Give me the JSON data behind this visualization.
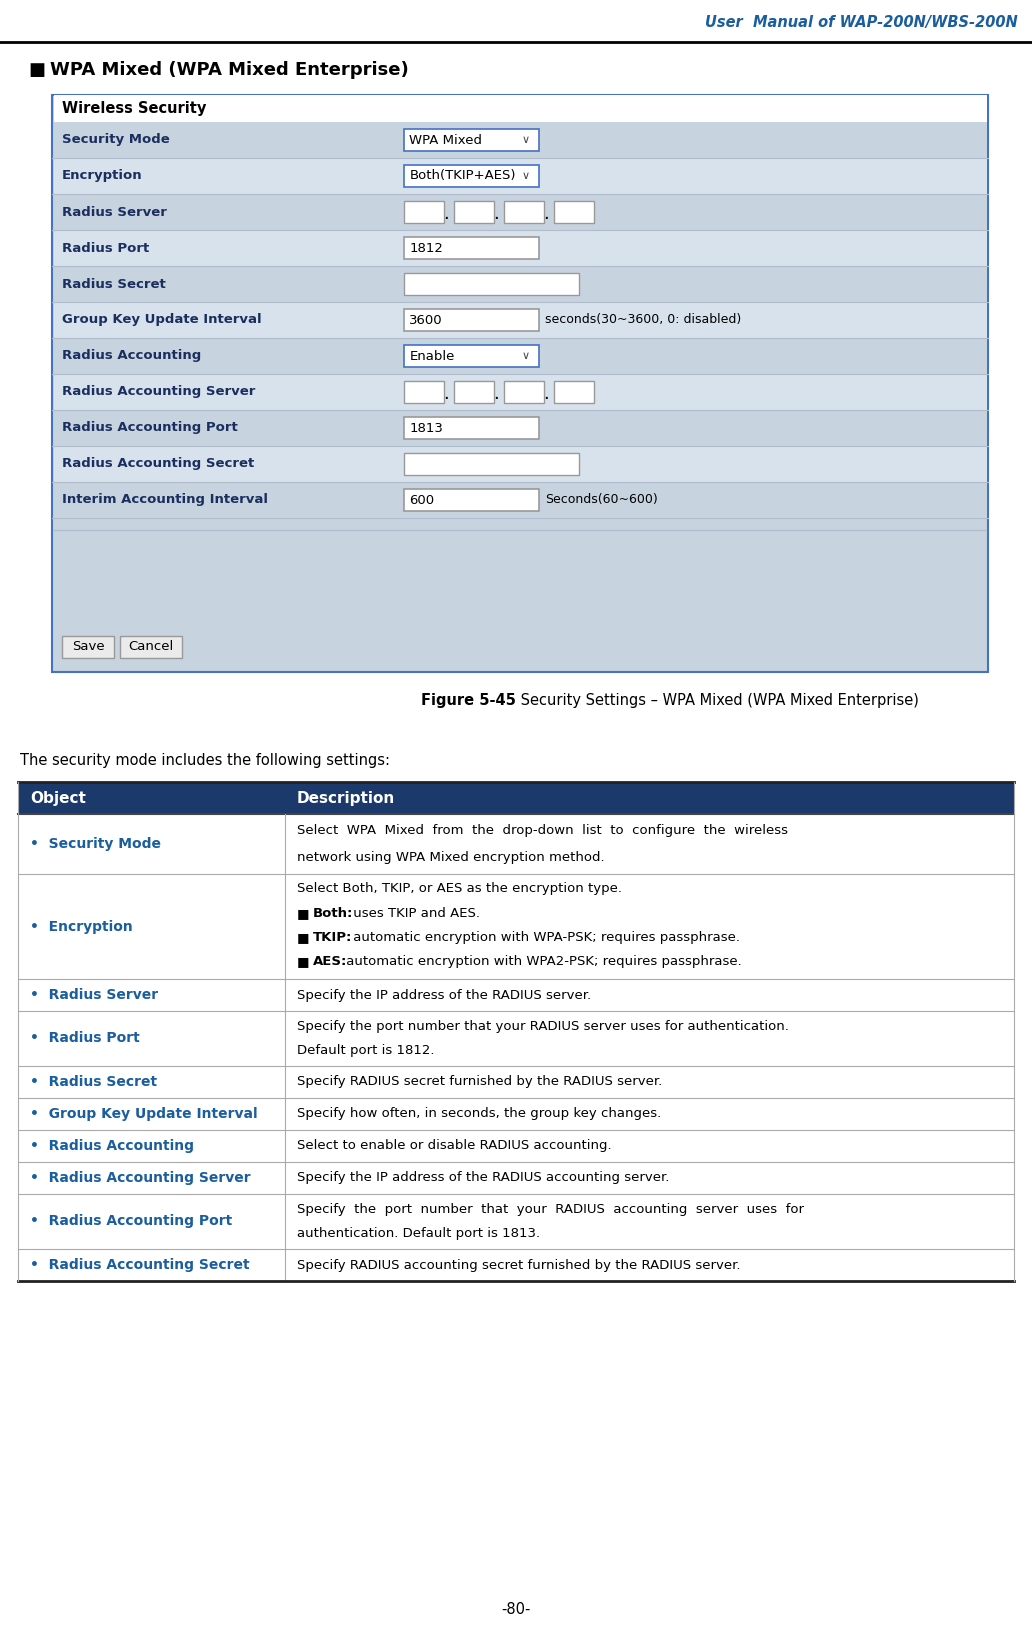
{
  "title_header": "User  Manual of WAP-200N/WBS-200N",
  "section_title": "WPA Mixed (WPA Mixed Enterprise)",
  "figure_caption_bold": "Figure 5-45",
  "figure_caption_rest": " Security Settings – WPA Mixed (WPA Mixed Enterprise)",
  "intro_text": "The security mode includes the following settings:",
  "table_header": [
    "Object",
    "Description"
  ],
  "table_rows": [
    {
      "object": "•  Security Mode",
      "description": "Select  WPA  Mixed  from  the  drop-down  list  to  configure  the  wireless\nnetwork using WPA Mixed encryption method.",
      "multiline": true
    },
    {
      "object": "•  Encryption",
      "description_lines": [
        "Select Both, TKIP, or AES as the encryption type.",
        "■   Both: uses TKIP and AES.",
        "■   TKIP: automatic encryption with WPA-PSK; requires passphrase.",
        "■   AES: automatic encryption with WPA2-PSK; requires passphrase."
      ],
      "multiline": true
    },
    {
      "object": "•  Radius Server",
      "description": "Specify the IP address of the RADIUS server.",
      "multiline": false
    },
    {
      "object": "•  Radius Port",
      "description": "Specify the port number that your RADIUS server uses for authentication.\nDefault port is 1812.",
      "multiline": true
    },
    {
      "object": "•  Radius Secret",
      "description": "Specify RADIUS secret furnished by the RADIUS server.",
      "multiline": false
    },
    {
      "object": "•  Group Key Update Interval",
      "description": "Specify how often, in seconds, the group key changes.",
      "multiline": false
    },
    {
      "object": "•  Radius Accounting",
      "description": "Select to enable or disable RADIUS accounting.",
      "multiline": false
    },
    {
      "object": "•  Radius Accounting Server",
      "description": "Specify the IP address of the RADIUS accounting server.",
      "multiline": false
    },
    {
      "object": "•  Radius Accounting Port",
      "description": "Specify  the  port  number  that  your  RADIUS  accounting  server  uses  for\nauthentication. Default port is 1813.",
      "multiline": true
    },
    {
      "object": "•  Radius Accounting Secret",
      "description": "Specify RADIUS accounting secret furnished by the RADIUS server.",
      "multiline": false
    }
  ],
  "header_bg": "#1B3A6B",
  "header_fg": "#FFFFFF",
  "object_color": "#1B5E9E",
  "page_number": "-80-",
  "bg_color": "#FFFFFF",
  "form_bg": "#C8D3E0",
  "form_border": "#4472C4",
  "form_label_color": "#1B2F5E",
  "form_row_even": "#C8D3E0",
  "form_row_odd": "#D8E2EC"
}
